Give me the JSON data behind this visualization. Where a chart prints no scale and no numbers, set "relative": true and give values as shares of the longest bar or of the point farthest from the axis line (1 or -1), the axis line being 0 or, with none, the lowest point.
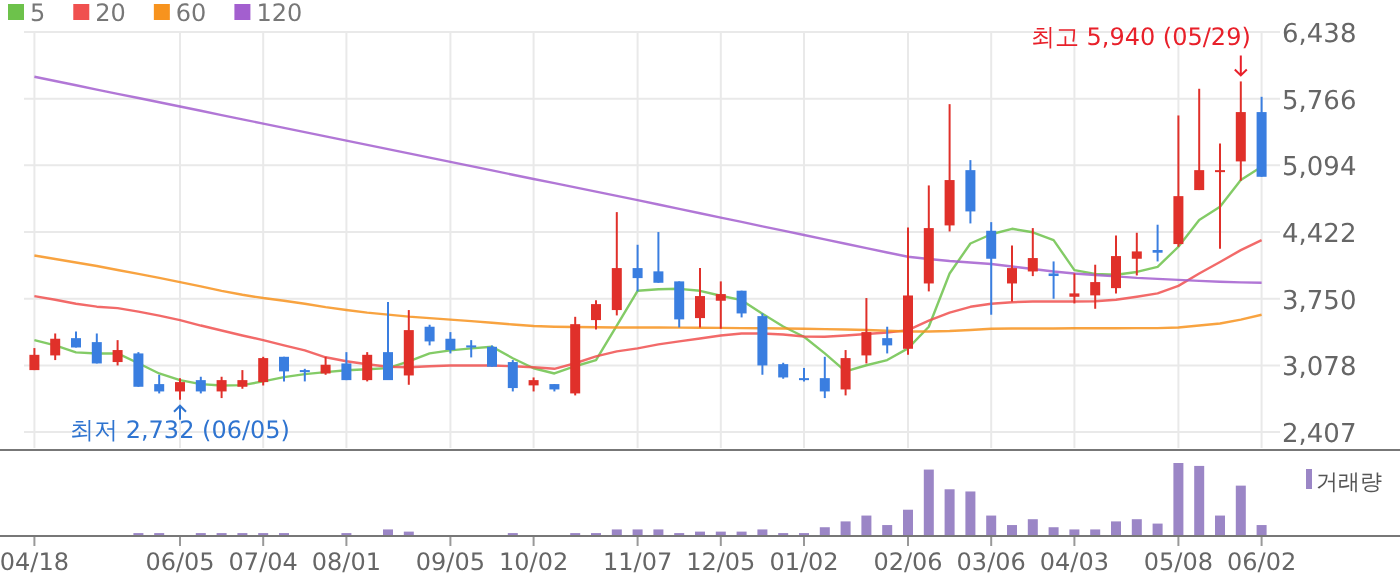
{
  "chart_data": [
    {
      "type": "candlestick",
      "categories": [
        "04/18",
        null,
        null,
        null,
        null,
        null,
        null,
        "06/05",
        null,
        null,
        null,
        "07/04",
        null,
        null,
        null,
        "08/01",
        null,
        null,
        null,
        null,
        "09/05",
        null,
        null,
        null,
        "10/02",
        null,
        null,
        null,
        null,
        "11/07",
        null,
        null,
        null,
        "12/05",
        null,
        null,
        null,
        "01/02",
        null,
        null,
        null,
        null,
        "02/06",
        null,
        null,
        null,
        "03/06",
        null,
        null,
        null,
        "04/03",
        null,
        null,
        null,
        null,
        "05/08",
        null,
        null,
        null,
        "06/02"
      ],
      "ohlc": [
        [
          3031,
          3253,
          3031,
          3185
        ],
        [
          3179,
          3400,
          3132,
          3347
        ],
        [
          3353,
          3421,
          3259,
          3259
        ],
        [
          3313,
          3400,
          3098,
          3098
        ],
        [
          3112,
          3333,
          3078,
          3233
        ],
        [
          3199,
          3212,
          2863,
          2863
        ],
        [
          2890,
          2984,
          2796,
          2816
        ],
        [
          2816,
          2950,
          2732,
          2910
        ],
        [
          2930,
          2964,
          2796,
          2816
        ],
        [
          2816,
          2964,
          2749,
          2930
        ],
        [
          2863,
          3031,
          2843,
          2930
        ],
        [
          2910,
          3165,
          2876,
          3152
        ],
        [
          3165,
          3165,
          2917,
          3018
        ],
        [
          3031,
          3044,
          2917,
          3018
        ],
        [
          2997,
          3165,
          2984,
          3085
        ],
        [
          3098,
          3212,
          2930,
          2930
        ],
        [
          2930,
          3212,
          2917,
          3185
        ],
        [
          3212,
          3716,
          2930,
          2930
        ],
        [
          2977,
          3636,
          2883,
          3434
        ],
        [
          3468,
          3488,
          3280,
          3320
        ],
        [
          3347,
          3414,
          3199,
          3233
        ],
        [
          3280,
          3333,
          3159,
          3259
        ],
        [
          3266,
          3280,
          3065,
          3065
        ],
        [
          3112,
          3132,
          2816,
          2850
        ],
        [
          2877,
          2957,
          2816,
          2930
        ],
        [
          2890,
          2890,
          2816,
          2836
        ],
        [
          2796,
          3568,
          2776,
          3494
        ],
        [
          3535,
          3736,
          3441,
          3696
        ],
        [
          3636,
          4623,
          3582,
          4059
        ],
        [
          4059,
          4294,
          3824,
          3958
        ],
        [
          4026,
          4422,
          3911,
          3911
        ],
        [
          3925,
          3925,
          3461,
          3542
        ],
        [
          3555,
          4059,
          3461,
          3777
        ],
        [
          3730,
          3925,
          3448,
          3797
        ],
        [
          3831,
          3831,
          3562,
          3602
        ],
        [
          3575,
          3602,
          2984,
          3078
        ],
        [
          3091,
          3105,
          2944,
          2957
        ],
        [
          2950,
          3051,
          2917,
          2930
        ],
        [
          2950,
          3165,
          2749,
          2816
        ],
        [
          2836,
          3233,
          2776,
          3152
        ],
        [
          3179,
          3757,
          3098,
          3414
        ],
        [
          3353,
          3468,
          3199,
          3280
        ],
        [
          3246,
          4469,
          3185,
          3783
        ],
        [
          3904,
          4892,
          3824,
          4462
        ],
        [
          4489,
          5711,
          4428,
          4946
        ],
        [
          5046,
          5147,
          4509,
          4630
        ],
        [
          4435,
          4522,
          3589,
          4153
        ],
        [
          3904,
          4287,
          3723,
          4059
        ],
        [
          4025,
          4462,
          3978,
          4160
        ],
        [
          4005,
          4126,
          3750,
          3979
        ],
        [
          3770,
          4005,
          3703,
          3804
        ],
        [
          3784,
          4093,
          3649,
          3918
        ],
        [
          3857,
          4388,
          3804,
          4180
        ],
        [
          4153,
          4415,
          3985,
          4227
        ],
        [
          4241,
          4496,
          4126,
          4214
        ],
        [
          4301,
          5597,
          4274,
          4784
        ],
        [
          4845,
          5866,
          4845,
          5046
        ],
        [
          5026,
          5315,
          4254,
          5046
        ],
        [
          5134,
          5940,
          4939,
          5631
        ],
        [
          5631,
          5785,
          4979,
          4979
        ]
      ],
      "series": [
        {
          "name": "5",
          "type": "line",
          "color": "#6dc24b",
          "values": [
            3333,
            3280,
            3210,
            3199,
            3199,
            3100,
            2997,
            2930,
            2890,
            2876,
            2880,
            2917,
            2960,
            2990,
            3011,
            3030,
            3040,
            3051,
            3120,
            3199,
            3230,
            3250,
            3266,
            3150,
            3050,
            2997,
            3070,
            3132,
            3480,
            3830,
            3845,
            3850,
            3830,
            3780,
            3736,
            3600,
            3470,
            3367,
            3200,
            3018,
            3080,
            3132,
            3250,
            3468,
            4005,
            4307,
            4400,
            4455,
            4420,
            4341,
            4039,
            4000,
            3992,
            4020,
            4072,
            4274,
            4543,
            4677,
            4946,
            5080
          ]
        },
        {
          "name": "20",
          "type": "line",
          "color": "#f0504f",
          "values": [
            3777,
            3740,
            3700,
            3670,
            3656,
            3620,
            3580,
            3535,
            3480,
            3430,
            3380,
            3333,
            3280,
            3230,
            3160,
            3120,
            3090,
            3065,
            3060,
            3070,
            3078,
            3078,
            3078,
            3070,
            3060,
            3044,
            3100,
            3170,
            3220,
            3250,
            3290,
            3320,
            3350,
            3380,
            3400,
            3400,
            3390,
            3370,
            3367,
            3380,
            3395,
            3410,
            3434,
            3530,
            3610,
            3669,
            3700,
            3715,
            3723,
            3723,
            3723,
            3725,
            3740,
            3770,
            3804,
            3880,
            4005,
            4120,
            4240,
            4341
          ]
        },
        {
          "name": "60",
          "type": "line",
          "color": "#f7931e",
          "values": [
            4186,
            4150,
            4115,
            4080,
            4040,
            4000,
            3960,
            3918,
            3875,
            3830,
            3790,
            3757,
            3730,
            3700,
            3665,
            3636,
            3610,
            3590,
            3570,
            3555,
            3540,
            3525,
            3508,
            3490,
            3475,
            3468,
            3465,
            3463,
            3461,
            3461,
            3460,
            3459,
            3458,
            3456,
            3454,
            3452,
            3450,
            3447,
            3444,
            3440,
            3435,
            3428,
            3420,
            3420,
            3425,
            3435,
            3447,
            3450,
            3450,
            3450,
            3452,
            3452,
            3453,
            3454,
            3454,
            3460,
            3480,
            3501,
            3540,
            3589
          ]
        },
        {
          "name": "120",
          "type": "line",
          "color": "#a35fcf",
          "values": [
            5987,
            5944,
            5901,
            5858,
            5815,
            5773,
            5730,
            5687,
            5644,
            5601,
            5558,
            5515,
            5472,
            5429,
            5386,
            5344,
            5301,
            5258,
            5215,
            5172,
            5129,
            5086,
            5043,
            5000,
            4957,
            4915,
            4872,
            4829,
            4786,
            4744,
            4700,
            4656,
            4612,
            4568,
            4524,
            4480,
            4436,
            4392,
            4348,
            4304,
            4260,
            4216,
            4173,
            4150,
            4130,
            4115,
            4100,
            4075,
            4050,
            4025,
            4005,
            3990,
            3975,
            3960,
            3950,
            3940,
            3930,
            3922,
            3915,
            3911
          ]
        }
      ],
      "ylim": [
        2246,
        6438
      ],
      "yticks": [
        {
          "value": 2407,
          "label": "2,407"
        },
        {
          "value": 3078,
          "label": "3,078"
        },
        {
          "value": 3750,
          "label": "3,750"
        },
        {
          "value": 4422,
          "label": "4,422"
        },
        {
          "value": 5094,
          "label": "5,094"
        },
        {
          "value": 5766,
          "label": "5,766"
        },
        {
          "value": 6438,
          "label": "6,438"
        }
      ],
      "grid": true,
      "legend": "top left",
      "annotations": [
        "최고 5,940 (05/29)",
        "최저 2,732 (06/05)"
      ]
    },
    {
      "type": "bar",
      "relative": true,
      "categories": [
        null,
        null,
        null,
        null,
        null,
        null,
        null,
        null,
        null,
        null,
        null,
        null,
        null,
        null,
        null,
        null,
        null,
        null,
        null,
        null,
        null,
        null,
        null,
        null,
        null,
        null,
        null,
        null,
        null,
        null,
        null,
        null,
        null,
        null,
        null,
        null,
        null,
        null,
        null,
        null,
        null,
        null,
        null,
        null,
        null,
        null,
        null,
        null,
        null,
        null,
        null,
        null,
        null,
        null,
        null,
        null,
        null,
        null,
        null,
        null
      ],
      "series": [
        {
          "name": "거래량",
          "color": "#9b86c6",
          "values": [
            null,
            null,
            null,
            null,
            null,
            0.04,
            0.04,
            null,
            0.04,
            0.04,
            0.04,
            0.04,
            0.04,
            null,
            null,
            0.04,
            null,
            0.09,
            0.06,
            null,
            null,
            null,
            null,
            0.04,
            null,
            null,
            0.04,
            0.04,
            0.09,
            0.09,
            0.09,
            0.04,
            0.06,
            0.06,
            0.06,
            0.09,
            0.04,
            0.04,
            0.12,
            0.2,
            0.28,
            0.15,
            0.36,
            0.91,
            0.64,
            0.61,
            0.28,
            0.15,
            0.23,
            0.12,
            0.09,
            0.09,
            0.2,
            0.23,
            0.17,
            1,
            0.96,
            0.28,
            0.69,
            0.15
          ]
        }
      ],
      "legend": "right"
    }
  ]
}
